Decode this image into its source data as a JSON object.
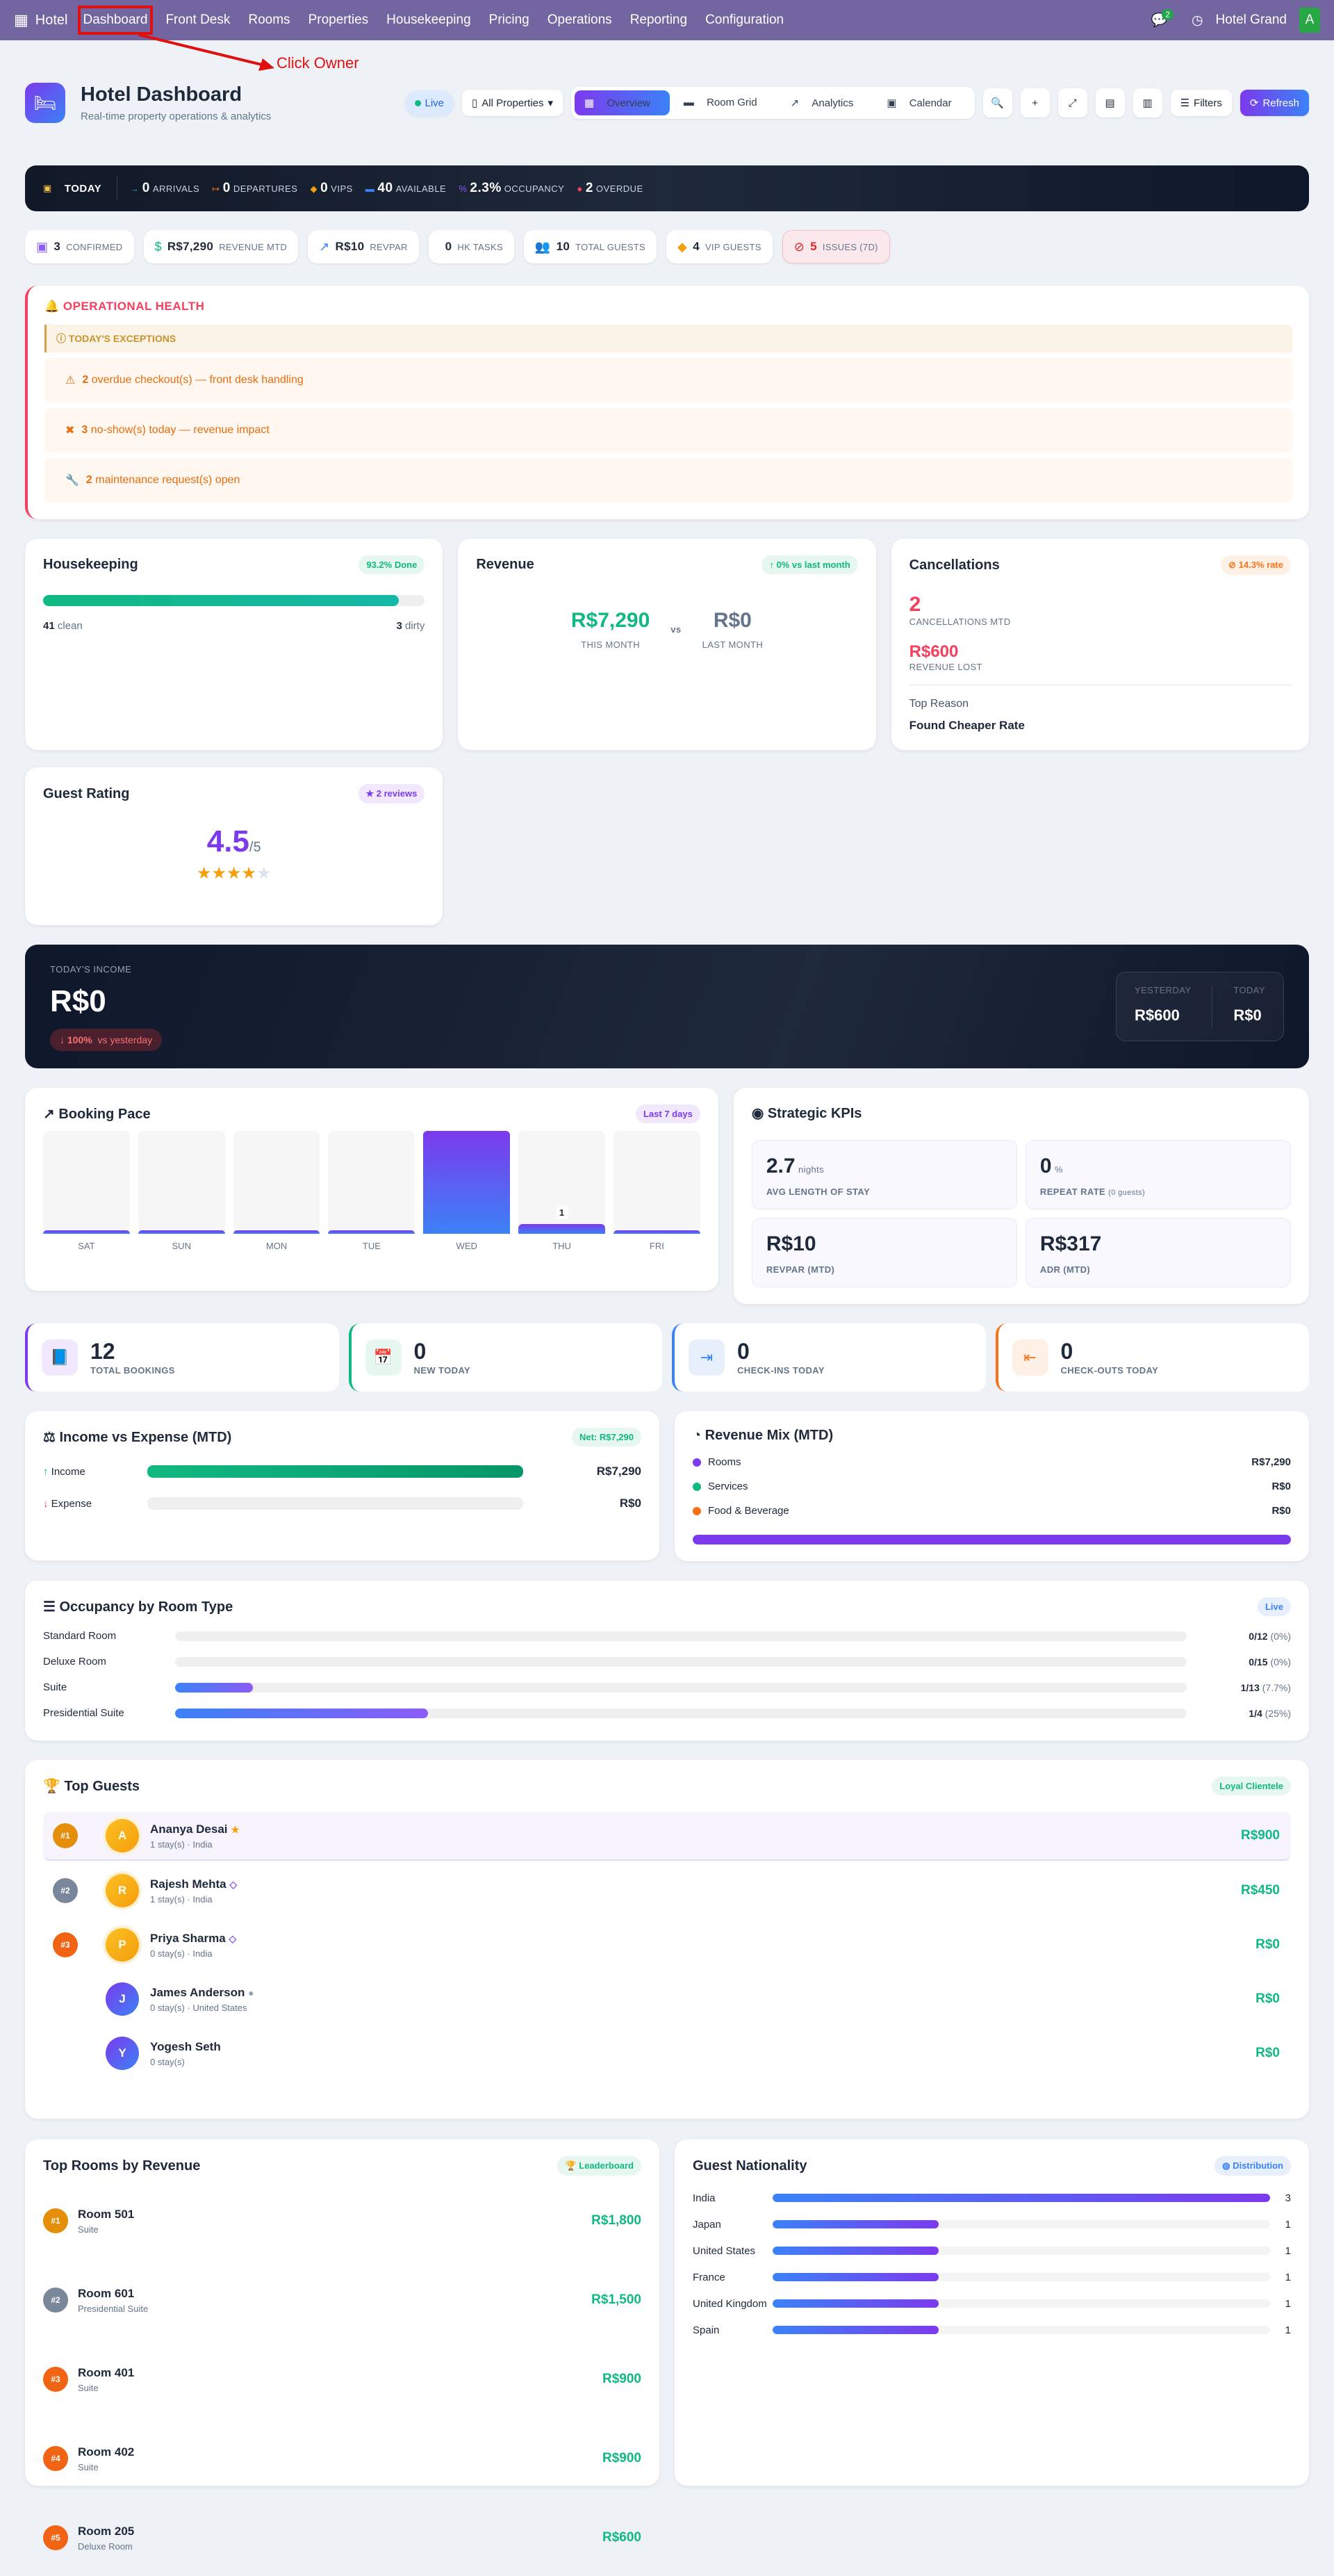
{
  "nav": {
    "brand": "Hotel",
    "items": [
      "Dashboard",
      "Front Desk",
      "Rooms",
      "Properties",
      "Housekeeping",
      "Pricing",
      "Operations",
      "Reporting",
      "Configuration"
    ],
    "chat_count": "2",
    "property": "Hotel Grand",
    "avatar": "A"
  },
  "annotation": "Click Owner",
  "header": {
    "title": "Hotel Dashboard",
    "subtitle": "Real-time property operations & analytics",
    "live": "Live",
    "properties": "All Properties",
    "tabs": [
      "Overview",
      "Room Grid",
      "Analytics",
      "Calendar"
    ],
    "filters": "Filters",
    "refresh": "Refresh"
  },
  "today": {
    "label": "TODAY",
    "items": [
      {
        "v": "0",
        "l": "ARRIVALS",
        "c": "#10b981",
        "i": "→"
      },
      {
        "v": "0",
        "l": "DEPARTURES",
        "c": "#f97316",
        "i": "↦"
      },
      {
        "v": "0",
        "l": "VIPS",
        "c": "#f59e0b",
        "i": "◆"
      },
      {
        "v": "40",
        "l": "AVAILABLE",
        "c": "#3b82f6",
        "i": "▬"
      },
      {
        "v": "2.3%",
        "l": "OCCUPANCY",
        "c": "#8b5cf6",
        "i": "%"
      },
      {
        "v": "2",
        "l": "OVERDUE",
        "c": "#f43f5e",
        "i": "●"
      }
    ]
  },
  "chips": [
    {
      "v": "3",
      "l": "CONFIRMED",
      "i": "▣",
      "c": "#8b5cf6"
    },
    {
      "v": "R$7,290",
      "l": "REVENUE MTD",
      "i": "$",
      "c": "#10b981"
    },
    {
      "v": "R$10",
      "l": "REVPAR",
      "i": "↗",
      "c": "#3b82f6"
    },
    {
      "v": "0",
      "l": "HK TASKS",
      "i": "",
      "c": "#000"
    },
    {
      "v": "10",
      "l": "TOTAL GUESTS",
      "i": "👥",
      "c": "#d4a14b"
    },
    {
      "v": "4",
      "l": "VIP GUESTS",
      "i": "◆",
      "c": "#f59e0b"
    },
    {
      "v": "5",
      "l": "ISSUES (7D)",
      "i": "⊘",
      "c": "#dc2626"
    }
  ],
  "ops": {
    "title": "OPERATIONAL HEALTH",
    "exceptions": "TODAY'S EXCEPTIONS",
    "items": [
      {
        "n": "2",
        "t": "overdue checkout(s) — front desk handling",
        "i": "⚠"
      },
      {
        "n": "3",
        "t": "no-show(s) today — revenue impact",
        "i": "✖"
      },
      {
        "n": "2",
        "t": "maintenance request(s) open",
        "i": "🔧"
      }
    ]
  },
  "housekeeping": {
    "title": "Housekeeping",
    "badge": "93.2% Done",
    "progress": 93.2,
    "clean": "41",
    "clean_l": "clean",
    "dirty": "3",
    "dirty_l": "dirty"
  },
  "revenue": {
    "title": "Revenue",
    "badge": "0% vs last month",
    "this": "R$7,290",
    "this_l": "THIS MONTH",
    "vs": "vs",
    "last": "R$0",
    "last_l": "LAST MONTH"
  },
  "cancel": {
    "title": "Cancellations",
    "badge": "14.3% rate",
    "count": "2",
    "count_l": "CANCELLATIONS MTD",
    "lost": "R$600",
    "lost_l": "REVENUE LOST",
    "reason_l": "Top Reason",
    "reason": "Found Cheaper Rate"
  },
  "rating": {
    "title": "Guest Rating",
    "badge": "2 reviews",
    "value": "4.5",
    "max": "/5",
    "stars": 4
  },
  "income": {
    "label": "TODAY'S INCOME",
    "value": "R$0",
    "change": "100%",
    "change_l": "vs yesterday",
    "yesterday_l": "YESTERDAY",
    "yesterday": "R$600",
    "today_l": "TODAY",
    "today": "R$0"
  },
  "pace": {
    "title": "Booking Pace",
    "badge": "Last 7 days",
    "days": [
      "SAT",
      "SUN",
      "MON",
      "TUE",
      "WED",
      "THU",
      "FRI"
    ],
    "values": [
      0,
      0,
      0,
      0,
      null,
      1,
      0
    ],
    "labels": [
      "",
      "",
      "",
      "",
      "",
      "1",
      ""
    ]
  },
  "kpis": {
    "title": "Strategic KPIs",
    "items": [
      {
        "v": "2.7",
        "u": "nights",
        "l": "AVG LENGTH OF STAY",
        "x": ""
      },
      {
        "v": "0",
        "u": "%",
        "l": "REPEAT RATE",
        "x": "(0 guests)"
      },
      {
        "v": "R$10",
        "u": "",
        "l": "REVPAR (MTD)",
        "x": ""
      },
      {
        "v": "R$317",
        "u": "",
        "l": "ADR (MTD)",
        "x": ""
      }
    ]
  },
  "stats": [
    {
      "v": "12",
      "l": "TOTAL BOOKINGS",
      "c": "#7c3aed",
      "bg": "#f1e8fd",
      "i": "📘"
    },
    {
      "v": "0",
      "l": "NEW TODAY",
      "c": "#10b981",
      "bg": "#e6f7ef",
      "i": "📅"
    },
    {
      "v": "0",
      "l": "CHECK-INS TODAY",
      "c": "#3b82f6",
      "bg": "#e7effd",
      "i": "⇥"
    },
    {
      "v": "0",
      "l": "CHECK-OUTS TODAY",
      "c": "#f97316",
      "bg": "#fff0e6",
      "i": "⇤"
    }
  ],
  "ie": {
    "title": "Income vs Expense (MTD)",
    "badge": "Net: R$7,290",
    "income_l": "Income",
    "income": "R$7,290",
    "income_pct": 100,
    "expense_l": "Expense",
    "expense": "R$0",
    "expense_pct": 0
  },
  "mix": {
    "title": "Revenue Mix (MTD)",
    "items": [
      {
        "l": "Rooms",
        "v": "R$7,290",
        "c": "#7c3aed"
      },
      {
        "l": "Services",
        "v": "R$0",
        "c": "#10b981"
      },
      {
        "l": "Food & Beverage",
        "v": "R$0",
        "c": "#f97316"
      }
    ]
  },
  "occ": {
    "title": "Occupancy by Room Type",
    "badge": "Live",
    "rows": [
      {
        "l": "Standard Room",
        "v": "0/12",
        "p": "(0%)",
        "pct": 0
      },
      {
        "l": "Deluxe Room",
        "v": "0/15",
        "p": "(0%)",
        "pct": 0
      },
      {
        "l": "Suite",
        "v": "1/13",
        "p": "(7.7%)",
        "pct": 7.7
      },
      {
        "l": "Presidential Suite",
        "v": "1/4",
        "p": "(25%)",
        "pct": 25
      }
    ]
  },
  "guests": {
    "title": "Top Guests",
    "badge": "Loyal Clientele",
    "rows": [
      {
        "r": "#1",
        "a": "A",
        "n": "Ananya Desai",
        "s": "1 stay(s) · India",
        "m": "R$900",
        "i": "★"
      },
      {
        "r": "#2",
        "a": "R",
        "n": "Rajesh Mehta",
        "s": "1 stay(s) · India",
        "m": "R$450",
        "i": "◇"
      },
      {
        "r": "#3",
        "a": "P",
        "n": "Priya Sharma",
        "s": "0 stay(s) · India",
        "m": "R$0",
        "i": "◇"
      },
      {
        "r": "",
        "a": "J",
        "n": "James Anderson",
        "s": "0 stay(s) · United States",
        "m": "R$0",
        "i": "●"
      },
      {
        "r": "",
        "a": "Y",
        "n": "Yogesh Seth",
        "s": "0 stay(s)",
        "m": "R$0",
        "i": ""
      }
    ]
  },
  "rooms": {
    "title": "Top Rooms by Revenue",
    "badge": "Leaderboard",
    "rows": [
      {
        "r": "#1",
        "n": "Room 501",
        "t": "Suite",
        "m": "R$1,800"
      },
      {
        "r": "#2",
        "n": "Room 601",
        "t": "Presidential Suite",
        "m": "R$1,500"
      },
      {
        "r": "#3",
        "n": "Room 401",
        "t": "Suite",
        "m": "R$900"
      },
      {
        "r": "#4",
        "n": "Room 402",
        "t": "Suite",
        "m": "R$900"
      },
      {
        "r": "#5",
        "n": "Room 205",
        "t": "Deluxe Room",
        "m": "R$600"
      }
    ]
  },
  "nationality": {
    "title": "Guest Nationality",
    "badge": "Distribution",
    "rows": [
      {
        "l": "India",
        "v": 3
      },
      {
        "l": "Japan",
        "v": 1
      },
      {
        "l": "United States",
        "v": 1
      },
      {
        "l": "France",
        "v": 1
      },
      {
        "l": "United Kingdom",
        "v": 1
      },
      {
        "l": "Spain",
        "v": 1
      }
    ]
  }
}
